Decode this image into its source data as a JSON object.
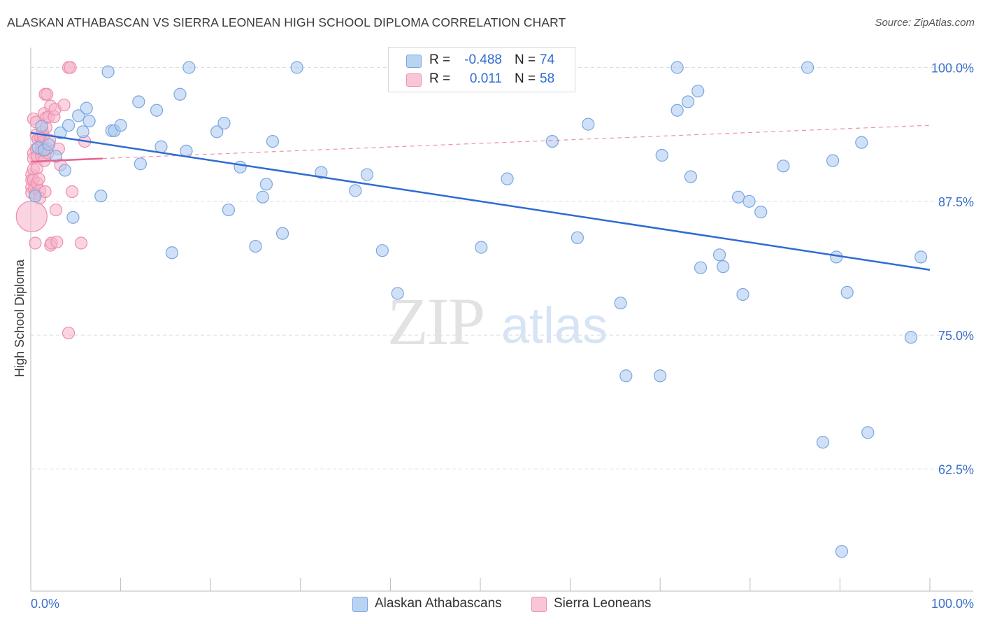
{
  "header": {
    "title": "ALASKAN ATHABASCAN VS SIERRA LEONEAN HIGH SCHOOL DIPLOMA CORRELATION CHART",
    "source": "Source: ZipAtlas.com"
  },
  "watermark": {
    "part1": "ZIP",
    "part2": "atlas"
  },
  "legend": {
    "rows": [
      {
        "r_label": "R =",
        "r_value": "-0.488",
        "n_label": "N =",
        "n_value": "74"
      },
      {
        "r_label": "R =",
        "r_value": "0.011",
        "n_label": "N =",
        "n_value": "58"
      }
    ]
  },
  "bottom_legend": {
    "series1": "Alaskan Athabascans",
    "series2": "Sierra Leoneans"
  },
  "colors": {
    "blue_fill": "#a9c8f0",
    "blue_stroke": "#7aa6e0",
    "blue_line": "#2f6bd2",
    "pink_fill": "#f6b3c8",
    "pink_stroke": "#ec8fae",
    "pink_line": "#e8638c",
    "axis_text": "#3b6fc9",
    "grid": "#dddddd"
  },
  "chart_data": {
    "type": "scatter",
    "title": "ALASKAN ATHABASCAN VS SIERRA LEONEAN HIGH SCHOOL DIPLOMA CORRELATION CHART",
    "xlabel": "",
    "ylabel": "High School Diploma",
    "xlim": [
      0,
      100
    ],
    "ylim": [
      50.3,
      101.2
    ],
    "x_tick_labels": [
      "0.0%",
      "100.0%"
    ],
    "y_ticks": [
      62.5,
      75.0,
      87.5,
      100.0
    ],
    "y_tick_labels": [
      "62.5%",
      "75.0%",
      "87.5%",
      "100.0%"
    ],
    "grid": true,
    "series": [
      {
        "name": "Alaskan Athabascans",
        "r": -0.488,
        "n": 74,
        "trend": {
          "x": [
            0,
            100
          ],
          "y": [
            93.9,
            81.1
          ]
        },
        "points": [
          [
            0.5,
            88
          ],
          [
            0.8,
            92.5
          ],
          [
            1.2,
            94.5
          ],
          [
            1.5,
            92.3
          ],
          [
            2,
            92.8
          ],
          [
            2.8,
            91.7
          ],
          [
            3.3,
            93.9
          ],
          [
            3.8,
            90.4
          ],
          [
            4.2,
            94.6
          ],
          [
            4.7,
            86
          ],
          [
            5.3,
            95.5
          ],
          [
            5.8,
            94.0
          ],
          [
            6.2,
            96.2
          ],
          [
            6.5,
            95.0
          ],
          [
            7.8,
            88
          ],
          [
            8.6,
            99.6
          ],
          [
            9,
            94.1
          ],
          [
            9.3,
            94.1
          ],
          [
            10,
            94.6
          ],
          [
            12,
            96.8
          ],
          [
            12.2,
            91
          ],
          [
            14,
            96.0
          ],
          [
            14.5,
            92.6
          ],
          [
            15.7,
            82.7
          ],
          [
            16.6,
            97.5
          ],
          [
            17.3,
            92.2
          ],
          [
            17.6,
            100
          ],
          [
            20.7,
            94.0
          ],
          [
            21.5,
            94.8
          ],
          [
            22,
            86.7
          ],
          [
            23.3,
            90.7
          ],
          [
            25,
            83.3
          ],
          [
            25.8,
            87.9
          ],
          [
            26.2,
            89.1
          ],
          [
            26.9,
            93.1
          ],
          [
            28,
            84.5
          ],
          [
            29.6,
            100
          ],
          [
            32.3,
            90.2
          ],
          [
            36.1,
            88.5
          ],
          [
            37.4,
            90.0
          ],
          [
            39.1,
            82.9
          ],
          [
            40.8,
            78.9
          ],
          [
            50.1,
            83.2
          ],
          [
            53,
            89.6
          ],
          [
            58,
            93.1
          ],
          [
            60.8,
            84.1
          ],
          [
            62,
            94.7
          ],
          [
            65.6,
            78
          ],
          [
            66.2,
            71.2
          ],
          [
            70,
            71.2
          ],
          [
            70.2,
            91.8
          ],
          [
            71.9,
            100
          ],
          [
            71.9,
            96
          ],
          [
            73.1,
            96.8
          ],
          [
            73.4,
            89.8
          ],
          [
            74.2,
            97.8
          ],
          [
            74.5,
            81.3
          ],
          [
            76.6,
            82.5
          ],
          [
            77,
            81.4
          ],
          [
            78.7,
            87.9
          ],
          [
            79.2,
            78.8
          ],
          [
            79.9,
            87.5
          ],
          [
            81.2,
            86.5
          ],
          [
            83.7,
            90.8
          ],
          [
            86.4,
            100
          ],
          [
            88.1,
            65
          ],
          [
            89.2,
            91.3
          ],
          [
            89.6,
            82.3
          ],
          [
            90.2,
            54.8
          ],
          [
            90.8,
            79
          ],
          [
            92.4,
            93
          ],
          [
            93.1,
            65.9
          ],
          [
            97.9,
            74.8
          ],
          [
            99,
            82.3
          ]
        ]
      },
      {
        "name": "Sierra Leoneans",
        "r": 0.011,
        "n": 58,
        "trend": {
          "x": [
            0,
            8
          ],
          "y": [
            91.2,
            91.5
          ]
        },
        "trend_extended": {
          "x": [
            8,
            100
          ],
          "y": [
            91.5,
            94.6
          ]
        },
        "points": [
          [
            0.1,
            90
          ],
          [
            0.1,
            89.5
          ],
          [
            0.1,
            88.8
          ],
          [
            0.1,
            88.3
          ],
          [
            0.1,
            86.1
          ],
          [
            0.3,
            95.2
          ],
          [
            0.3,
            92
          ],
          [
            0.3,
            91.5
          ],
          [
            0.3,
            90.5
          ],
          [
            0.3,
            89.5
          ],
          [
            0.4,
            88.7
          ],
          [
            0.5,
            88.2
          ],
          [
            0.5,
            83.6
          ],
          [
            0.6,
            94.9
          ],
          [
            0.6,
            93.7
          ],
          [
            0.6,
            92.4
          ],
          [
            0.7,
            91.7
          ],
          [
            0.7,
            90.6
          ],
          [
            0.7,
            89.2
          ],
          [
            0.8,
            93.3
          ],
          [
            0.9,
            89.6
          ],
          [
            1.0,
            88.5
          ],
          [
            1.0,
            87.8
          ],
          [
            1.1,
            93.4
          ],
          [
            1.2,
            92.7
          ],
          [
            1.2,
            92.2
          ],
          [
            1.2,
            91.7
          ],
          [
            1.3,
            94.0
          ],
          [
            1.3,
            93.0
          ],
          [
            1.4,
            93.6
          ],
          [
            1.5,
            95.7
          ],
          [
            1.5,
            92.2
          ],
          [
            1.5,
            91.3
          ],
          [
            1.6,
            97.5
          ],
          [
            1.6,
            88.4
          ],
          [
            1.7,
            95.3
          ],
          [
            1.7,
            94.4
          ],
          [
            1.8,
            97.5
          ],
          [
            1.8,
            92.4
          ],
          [
            1.9,
            92.0
          ],
          [
            2.0,
            95.4
          ],
          [
            2.1,
            93.2
          ],
          [
            2.2,
            96.4
          ],
          [
            2.2,
            83.4
          ],
          [
            2.3,
            83.6
          ],
          [
            2.6,
            95.4
          ],
          [
            2.7,
            96.1
          ],
          [
            2.8,
            86.7
          ],
          [
            2.9,
            83.7
          ],
          [
            3.1,
            92.4
          ],
          [
            3.3,
            90.9
          ],
          [
            3.7,
            96.5
          ],
          [
            4.2,
            75.2
          ],
          [
            4.2,
            100
          ],
          [
            4.4,
            100
          ],
          [
            4.6,
            88.4
          ],
          [
            5.6,
            83.6
          ],
          [
            6,
            93.1
          ]
        ]
      }
    ]
  }
}
